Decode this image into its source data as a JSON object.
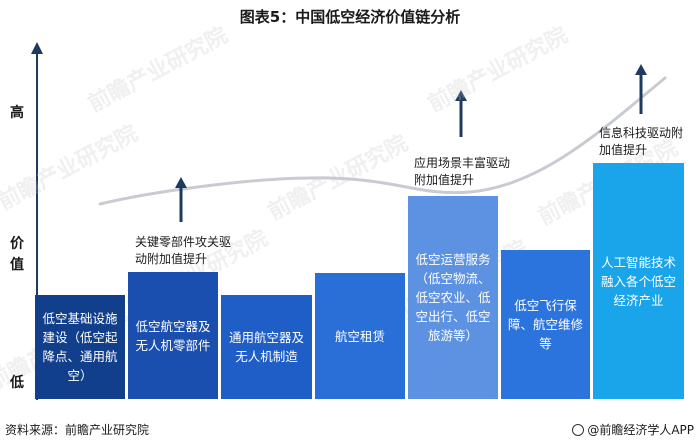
{
  "title": "图表5：中国低空经济价值链分析",
  "y_axis": {
    "high": "高",
    "value_1": "价",
    "value_2": "值",
    "low": "低"
  },
  "bars": [
    {
      "label": "低空基础设施建设（低空起降点、通用航空）",
      "color": "#123f8c"
    },
    {
      "label": "低空航空器及无人机零部件",
      "color": "#1a4fb0"
    },
    {
      "label": "通用航空器及无人机制造",
      "color": "#1f5dc7"
    },
    {
      "label": "航空租赁",
      "color": "#2a6fd8"
    },
    {
      "label": "低空运营服务（低空物流、低空农业、低空出行、低空旅游等）",
      "color": "#5d92e2"
    },
    {
      "label": "低空飞行保障、航空维修等",
      "color": "#2b74de"
    },
    {
      "label": "人工智能技术融入各个低空经济产业",
      "color": "#1aa4ea"
    }
  ],
  "notes": {
    "parts": "关键零部件攻关驱动附加值提升",
    "scenario": "应用场景丰富驱动附加值提升",
    "tech": "信息科技驱动附加值提升"
  },
  "footer": {
    "source": "资料来源：前瞻产业研究院",
    "brand": "@前瞻经济学人APP"
  },
  "watermark": "前瞻产业研究院"
}
